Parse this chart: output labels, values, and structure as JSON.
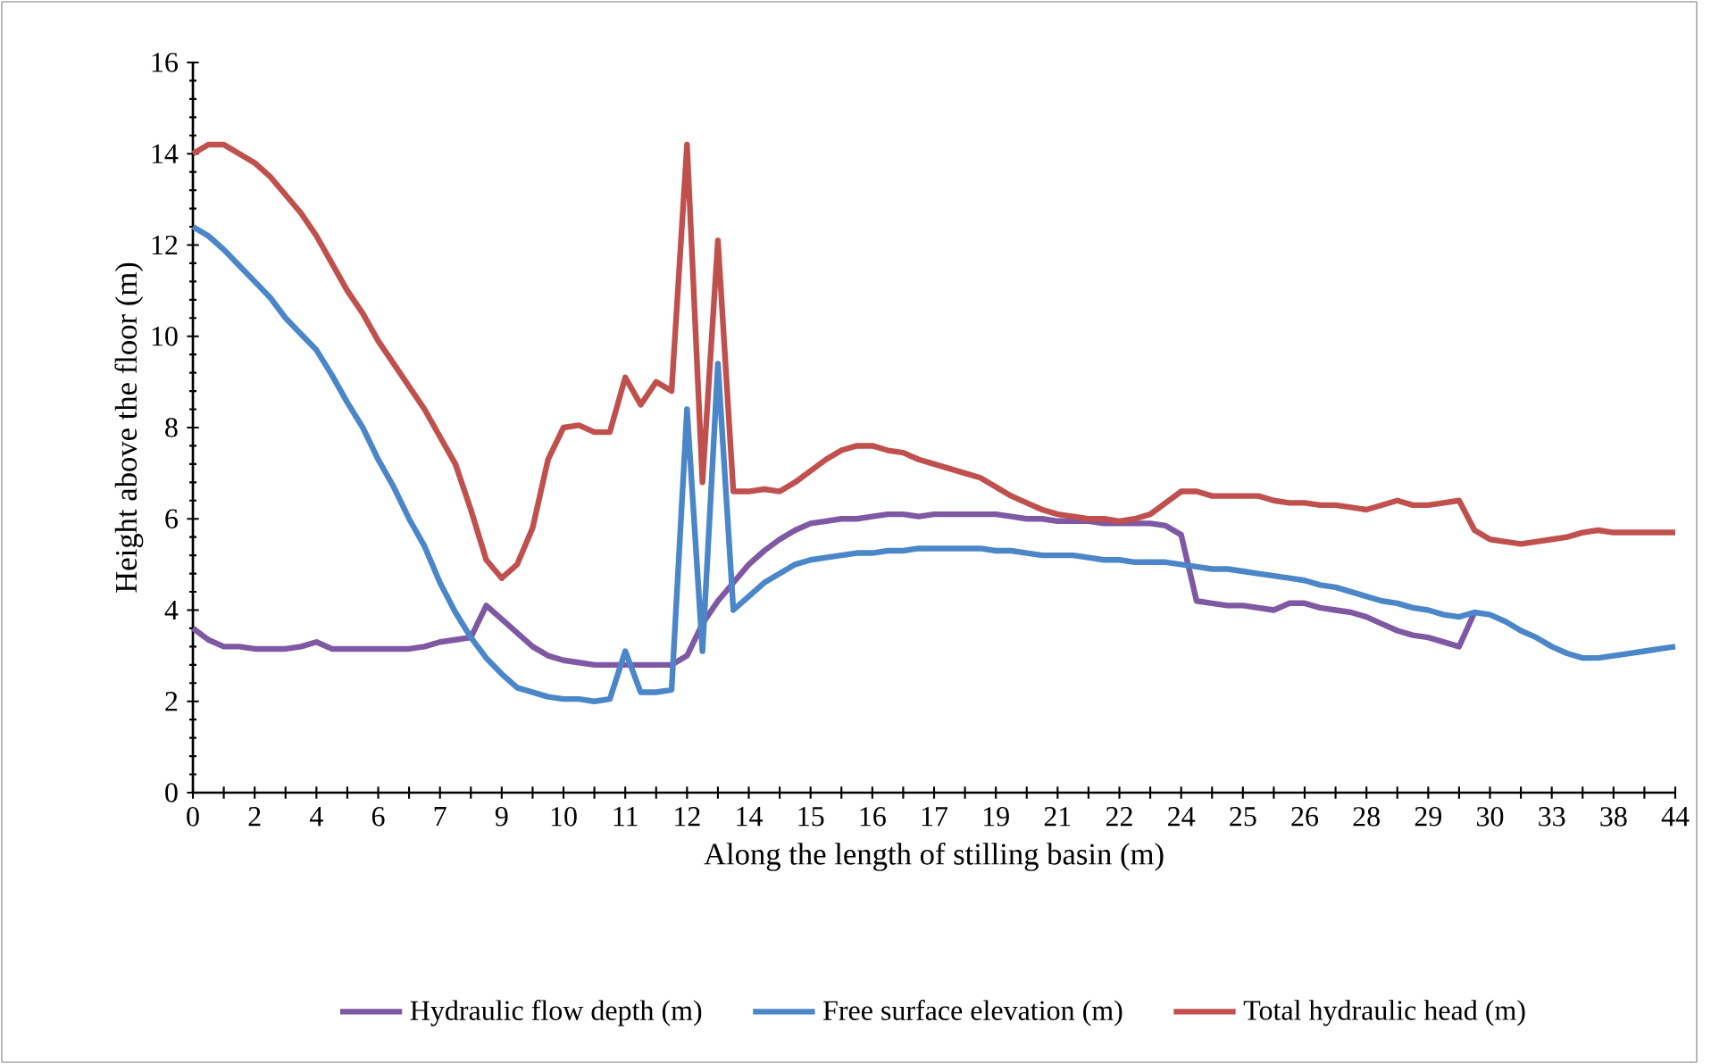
{
  "chart_data": {
    "type": "line",
    "xlabel": "Along the length of stilling basin (m)",
    "ylabel": "Height above the floor (m)",
    "categories": [
      "0",
      null,
      null,
      null,
      "2",
      null,
      null,
      null,
      "4",
      null,
      null,
      null,
      "6",
      null,
      null,
      null,
      "7",
      null,
      null,
      null,
      "9",
      null,
      null,
      null,
      "10",
      null,
      null,
      null,
      "11",
      null,
      null,
      null,
      "12",
      null,
      null,
      null,
      "14",
      null,
      null,
      null,
      "15",
      null,
      null,
      null,
      "16",
      null,
      null,
      null,
      "17",
      null,
      null,
      null,
      "19",
      null,
      null,
      null,
      "21",
      null,
      null,
      null,
      "22",
      null,
      null,
      null,
      "24",
      null,
      null,
      null,
      "25",
      null,
      null,
      null,
      "26",
      null,
      null,
      null,
      "28",
      null,
      null,
      null,
      "29",
      null,
      null,
      null,
      "30",
      null,
      null,
      null,
      "33",
      null,
      null,
      null,
      "38",
      null,
      null,
      null,
      "44"
    ],
    "ylim": [
      0,
      16
    ],
    "yticks": [
      0,
      2,
      4,
      6,
      8,
      10,
      12,
      14,
      16
    ],
    "legend": "bottom",
    "series": [
      {
        "name": "Hydraulic flow depth (m)",
        "color": "#7f58a3",
        "values": [
          3.6,
          3.35,
          3.2,
          3.2,
          3.15,
          3.15,
          3.15,
          3.2,
          3.3,
          3.15,
          3.15,
          3.15,
          3.15,
          3.15,
          3.15,
          3.2,
          3.3,
          3.35,
          3.4,
          4.1,
          3.8,
          3.5,
          3.2,
          3.0,
          2.9,
          2.85,
          2.8,
          2.8,
          2.8,
          2.8,
          2.8,
          2.8,
          3.0,
          3.7,
          4.2,
          4.6,
          5.0,
          5.3,
          5.55,
          5.75,
          5.9,
          5.95,
          6.0,
          6.0,
          6.05,
          6.1,
          6.1,
          6.05,
          6.1,
          6.1,
          6.1,
          6.1,
          6.1,
          6.05,
          6.0,
          6.0,
          5.95,
          5.95,
          5.95,
          5.9,
          5.9,
          5.9,
          5.9,
          5.85,
          5.65,
          4.2,
          4.15,
          4.1,
          4.1,
          4.05,
          4.0,
          4.15,
          4.15,
          4.05,
          4.0,
          3.95,
          3.85,
          3.7,
          3.55,
          3.45,
          3.4,
          3.3,
          3.2,
          3.95,
          null,
          null,
          null,
          null,
          null,
          null,
          null,
          null,
          null,
          null,
          null,
          null,
          null
        ]
      },
      {
        "name": "Free surface elevation (m)",
        "color": "#4a86c8",
        "values": [
          12.4,
          12.2,
          11.9,
          11.55,
          11.2,
          10.85,
          10.4,
          10.05,
          9.7,
          9.15,
          8.55,
          8.0,
          7.3,
          6.7,
          6.0,
          5.4,
          4.6,
          3.95,
          3.4,
          2.95,
          2.6,
          2.3,
          2.2,
          2.1,
          2.05,
          2.05,
          2.0,
          2.05,
          3.1,
          2.2,
          2.2,
          2.25,
          8.4,
          3.1,
          9.4,
          4.0,
          4.3,
          4.6,
          4.8,
          5.0,
          5.1,
          5.15,
          5.2,
          5.25,
          5.25,
          5.3,
          5.3,
          5.35,
          5.35,
          5.35,
          5.35,
          5.35,
          5.3,
          5.3,
          5.25,
          5.2,
          5.2,
          5.2,
          5.15,
          5.1,
          5.1,
          5.05,
          5.05,
          5.05,
          5.0,
          4.95,
          4.9,
          4.9,
          4.85,
          4.8,
          4.75,
          4.7,
          4.65,
          4.55,
          4.5,
          4.4,
          4.3,
          4.2,
          4.15,
          4.05,
          4.0,
          3.9,
          3.85,
          3.95,
          3.9,
          3.75,
          3.55,
          3.4,
          3.2,
          3.05,
          2.95,
          2.95,
          3.0,
          3.05,
          3.1,
          3.15,
          3.2
        ]
      },
      {
        "name": "Total hydraulic head (m)",
        "color": "#c0504d",
        "values": [
          14.0,
          14.2,
          14.2,
          14.0,
          13.8,
          13.5,
          13.1,
          12.7,
          12.2,
          11.6,
          11.0,
          10.5,
          9.9,
          9.4,
          8.9,
          8.4,
          7.8,
          7.2,
          6.2,
          5.1,
          4.7,
          5.0,
          5.8,
          7.3,
          8.0,
          8.05,
          7.9,
          7.9,
          9.1,
          8.5,
          9.0,
          8.8,
          14.2,
          6.8,
          12.1,
          6.6,
          6.6,
          6.65,
          6.6,
          6.8,
          7.05,
          7.3,
          7.5,
          7.6,
          7.6,
          7.5,
          7.45,
          7.3,
          7.2,
          7.1,
          7.0,
          6.9,
          6.7,
          6.5,
          6.35,
          6.2,
          6.1,
          6.05,
          6.0,
          6.0,
          5.95,
          6.0,
          6.1,
          6.35,
          6.6,
          6.6,
          6.5,
          6.5,
          6.5,
          6.5,
          6.4,
          6.35,
          6.35,
          6.3,
          6.3,
          6.25,
          6.2,
          6.3,
          6.4,
          6.3,
          6.3,
          6.35,
          6.4,
          5.75,
          5.55,
          5.5,
          5.45,
          5.5,
          5.55,
          5.6,
          5.7,
          5.75,
          5.7,
          5.7,
          5.7,
          5.7,
          5.7
        ]
      }
    ]
  }
}
